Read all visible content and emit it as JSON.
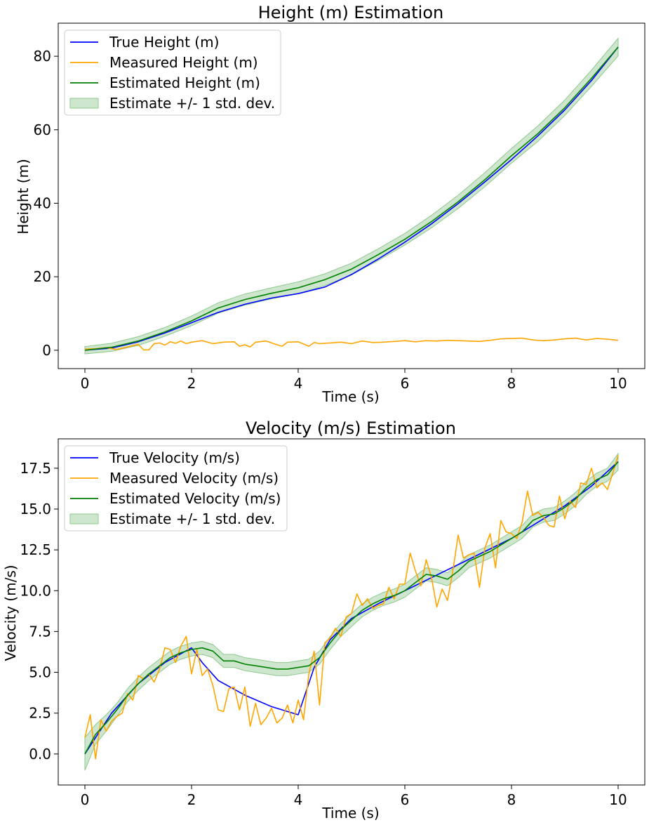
{
  "chart_data": [
    {
      "type": "line",
      "title": "Height (m) Estimation",
      "xlabel": "Time (s)",
      "ylabel": "Height (m)",
      "xlim": [
        -0.5,
        10.5
      ],
      "ylim": [
        -5,
        89
      ],
      "xticks": [
        0,
        2,
        4,
        6,
        8,
        10
      ],
      "xtick_labels": [
        "0",
        "2",
        "4",
        "6",
        "8",
        "10"
      ],
      "yticks": [
        0,
        20,
        40,
        60,
        80
      ],
      "ytick_labels": [
        "0",
        "20",
        "40",
        "60",
        "80"
      ],
      "grid": false,
      "legend_position": "top-left",
      "colors": {
        "true": "#0000ff",
        "measured": "#ffa500",
        "estimated": "#008000",
        "band": "#90c890"
      },
      "legend": [
        "True Height (m)",
        "Measured Height (m)",
        "Estimated Height (m)",
        "Estimate +/- 1 std. dev."
      ],
      "series": [
        {
          "name": "True Height (m)",
          "key": "true",
          "x": [
            0,
            0.5,
            1,
            1.5,
            2,
            2.5,
            3,
            3.5,
            4,
            4.5,
            5,
            5.5,
            6,
            6.5,
            7,
            7.5,
            8,
            8.5,
            9,
            9.5,
            10
          ],
          "y": [
            0,
            0.6,
            2.3,
            4.7,
            7.5,
            10.3,
            12.5,
            14.2,
            15.4,
            17.2,
            20.6,
            24.8,
            29.4,
            34.4,
            39.9,
            45.8,
            51.9,
            58.4,
            65.4,
            73.4,
            82.5
          ]
        },
        {
          "name": "Measured Height (m)",
          "key": "measured",
          "x": [
            0,
            0.2,
            0.4,
            0.6,
            0.8,
            1,
            1.1,
            1.2,
            1.3,
            1.4,
            1.5,
            1.6,
            1.7,
            1.8,
            1.9,
            2,
            2.2,
            2.4,
            2.6,
            2.8,
            2.9,
            3,
            3.1,
            3.2,
            3.4,
            3.6,
            3.7,
            3.8,
            4,
            4.2,
            4.3,
            4.4,
            4.6,
            4.8,
            5,
            5.2,
            5.4,
            5.6,
            5.8,
            6,
            6.2,
            6.4,
            6.6,
            6.8,
            7,
            7.2,
            7.4,
            7.6,
            7.8,
            8,
            8.2,
            8.4,
            8.6,
            8.8,
            9,
            9.2,
            9.4,
            9.6,
            9.8,
            10
          ],
          "y": [
            0.3,
            0.4,
            0.7,
            0.2,
            0.9,
            1.6,
            0.1,
            0.1,
            1.8,
            2,
            1.4,
            2.3,
            1.9,
            2.5,
            1.8,
            2.2,
            2.6,
            1.8,
            2.2,
            2.3,
            1.1,
            1.5,
            0.9,
            2.2,
            2.5,
            1.5,
            1.1,
            2.2,
            2.3,
            1.1,
            2.1,
            1.8,
            2,
            2.2,
            1.8,
            2.5,
            2.1,
            2.2,
            2.4,
            2.6,
            2.3,
            2.6,
            2.5,
            2.7,
            2.6,
            2.5,
            2.4,
            2.7,
            3.1,
            3.2,
            3.3,
            2.8,
            2.6,
            2.8,
            3.1,
            3.3,
            2.8,
            3.2,
            3,
            2.7
          ]
        },
        {
          "name": "Estimated Height (m)",
          "key": "estimated",
          "x": [
            0,
            0.5,
            1,
            1.5,
            2,
            2.5,
            3,
            3.5,
            4,
            4.5,
            5,
            5.5,
            6,
            6.5,
            7,
            7.5,
            8,
            8.5,
            9,
            9.5,
            10
          ],
          "y": [
            0,
            0.8,
            2.5,
            5,
            8,
            11.5,
            13.8,
            15.5,
            17,
            19.2,
            22.1,
            26,
            30.2,
            35,
            40.4,
            46.4,
            52.9,
            59,
            66,
            74,
            82.5
          ]
        },
        {
          "name": "Estimate +/- 1 std. dev.",
          "key": "band",
          "x": [
            0,
            0.5,
            1,
            1.5,
            2,
            2.5,
            3,
            3.5,
            4,
            4.5,
            5,
            5.5,
            6,
            6.5,
            7,
            7.5,
            8,
            8.5,
            9,
            9.5,
            10
          ],
          "y_lower": [
            -1,
            -0.3,
            1.3,
            3.8,
            6.7,
            10.1,
            12.3,
            14,
            15.4,
            17.6,
            20.5,
            24.4,
            28.6,
            33.3,
            38.6,
            44.5,
            50.9,
            56.9,
            63.9,
            71.8,
            80.1
          ],
          "y_upper": [
            1,
            1.9,
            3.7,
            6.2,
            9.3,
            12.9,
            15.3,
            17,
            18.6,
            20.8,
            23.7,
            27.6,
            31.8,
            36.7,
            42.2,
            48.3,
            54.9,
            61.1,
            68.1,
            76.2,
            84.9
          ]
        }
      ]
    },
    {
      "type": "line",
      "title": "Velocity (m/s) Estimation",
      "xlabel": "Time (s)",
      "ylabel": "Velocity (m/s)",
      "xlim": [
        -0.5,
        10.5
      ],
      "ylim": [
        -1.9,
        19.3
      ],
      "xticks": [
        0,
        2,
        4,
        6,
        8,
        10
      ],
      "xtick_labels": [
        "0",
        "2",
        "4",
        "6",
        "8",
        "10"
      ],
      "yticks": [
        0,
        2.5,
        5,
        7.5,
        10,
        12.5,
        15,
        17.5
      ],
      "ytick_labels": [
        "0.0",
        "2.5",
        "5.0",
        "7.5",
        "10.0",
        "12.5",
        "15.0",
        "17.5"
      ],
      "grid": false,
      "legend_position": "top-left",
      "colors": {
        "true": "#0000ff",
        "measured": "#ffa500",
        "estimated": "#008000",
        "band": "#90c890"
      },
      "legend": [
        "True Velocity (m/s)",
        "Measured Velocity (m/s)",
        "Estimated Velocity (m/s)",
        "Estimate +/- 1 std. dev."
      ],
      "series": [
        {
          "name": "True Velocity (m/s)",
          "key": "true",
          "x": [
            0,
            0.5,
            1,
            1.5,
            2,
            2.2,
            2.5,
            3,
            3.5,
            4,
            4.3,
            4.6,
            5,
            5.5,
            6,
            6.5,
            7,
            7.5,
            8,
            8.5,
            9,
            9.5,
            10
          ],
          "y": [
            0,
            2.5,
            4.3,
            5.6,
            6.5,
            5.6,
            4.5,
            3.6,
            2.9,
            2.4,
            5.3,
            7,
            8.3,
            9.2,
            10,
            10.8,
            11.6,
            12.4,
            13.2,
            14.2,
            15.2,
            16.4,
            17.9
          ]
        },
        {
          "name": "Measured Velocity (m/s)",
          "key": "measured",
          "x": [
            0,
            0.1,
            0.2,
            0.3,
            0.4,
            0.5,
            0.6,
            0.7,
            0.8,
            0.9,
            1,
            1.1,
            1.2,
            1.3,
            1.4,
            1.5,
            1.6,
            1.7,
            1.8,
            1.9,
            2,
            2.1,
            2.2,
            2.3,
            2.4,
            2.5,
            2.6,
            2.7,
            2.8,
            2.9,
            3,
            3.1,
            3.2,
            3.3,
            3.4,
            3.5,
            3.6,
            3.7,
            3.8,
            3.9,
            4,
            4.1,
            4.2,
            4.3,
            4.4,
            4.5,
            4.6,
            4.7,
            4.8,
            4.9,
            5,
            5.1,
            5.2,
            5.3,
            5.4,
            5.5,
            5.6,
            5.7,
            5.8,
            5.9,
            6,
            6.1,
            6.2,
            6.3,
            6.4,
            6.5,
            6.6,
            6.7,
            6.8,
            6.9,
            7,
            7.1,
            7.2,
            7.3,
            7.4,
            7.5,
            7.6,
            7.7,
            7.8,
            7.9,
            8,
            8.1,
            8.2,
            8.3,
            8.4,
            8.5,
            8.6,
            8.7,
            8.8,
            8.9,
            9,
            9.1,
            9.2,
            9.3,
            9.4,
            9.5,
            9.6,
            9.7,
            9.8,
            9.9,
            10
          ],
          "y": [
            1,
            2.4,
            -0.3,
            2.1,
            1.4,
            2,
            2.3,
            2.5,
            3.7,
            3.3,
            4.8,
            4.6,
            4.9,
            4.4,
            5.2,
            6.5,
            6.4,
            5.6,
            6.6,
            7.2,
            4.9,
            6.4,
            4.8,
            5.2,
            4.2,
            2.7,
            2.6,
            4,
            4.1,
            2.7,
            4.1,
            1.7,
            3.1,
            1.8,
            2.2,
            2.8,
            1.9,
            2.2,
            3,
            1.9,
            3.3,
            2.1,
            4.9,
            6.3,
            3,
            6.8,
            7.1,
            7.7,
            7.2,
            8.4,
            8.6,
            9.8,
            9.1,
            9.5,
            8.9,
            9.1,
            9.2,
            10.2,
            9.5,
            10.4,
            10.4,
            12.3,
            11.2,
            10.3,
            11.9,
            10.8,
            9,
            10.1,
            9.4,
            11.2,
            13.4,
            12,
            12.2,
            12.3,
            10.2,
            12.6,
            13.5,
            11.4,
            14.3,
            13.6,
            13.5,
            13.2,
            14.2,
            16.1,
            14.6,
            14.8,
            14.5,
            14,
            13.9,
            15.8,
            14.4,
            15.5,
            15.1,
            16.6,
            16.5,
            17.5,
            16.3,
            16.6,
            16.2,
            17.2,
            18.3
          ]
        },
        {
          "name": "Estimated Velocity (m/s)",
          "key": "estimated",
          "x": [
            0,
            0.2,
            0.4,
            0.6,
            0.8,
            1,
            1.2,
            1.4,
            1.6,
            1.8,
            2,
            2.2,
            2.4,
            2.6,
            2.8,
            3,
            3.2,
            3.4,
            3.6,
            3.8,
            4,
            4.2,
            4.4,
            4.6,
            4.8,
            5,
            5.2,
            5.4,
            5.6,
            5.8,
            6,
            6.2,
            6.4,
            6.6,
            6.8,
            7,
            7.2,
            7.4,
            7.6,
            7.8,
            8,
            8.2,
            8.4,
            8.6,
            8.8,
            9,
            9.2,
            9.4,
            9.6,
            9.8,
            10
          ],
          "y": [
            0,
            1.2,
            1.9,
            2.7,
            3.6,
            4.3,
            4.9,
            5.4,
            5.9,
            6.2,
            6.4,
            6.5,
            6.3,
            5.7,
            5.7,
            5.5,
            5.4,
            5.3,
            5.2,
            5.2,
            5.3,
            5.4,
            5.9,
            6.8,
            7.6,
            8.2,
            8.8,
            9.2,
            9.5,
            9.7,
            10,
            10.5,
            11,
            10.9,
            10.7,
            11.2,
            11.8,
            12.1,
            12.4,
            12.8,
            13.2,
            13.6,
            14.3,
            14.6,
            14.7,
            15.1,
            15.6,
            16.3,
            16.8,
            17.1,
            17.9
          ]
        },
        {
          "name": "Estimate +/- 1 std. dev.",
          "key": "band",
          "x": [
            0,
            0.2,
            0.4,
            0.6,
            0.8,
            1,
            1.2,
            1.4,
            1.6,
            1.8,
            2,
            2.2,
            2.4,
            2.6,
            2.8,
            3,
            3.2,
            3.4,
            3.6,
            3.8,
            4,
            4.2,
            4.4,
            4.6,
            4.8,
            5,
            5.2,
            5.4,
            5.6,
            5.8,
            6,
            6.2,
            6.4,
            6.6,
            6.8,
            7,
            7.2,
            7.4,
            7.6,
            7.8,
            8,
            8.2,
            8.4,
            8.6,
            8.8,
            9,
            9.2,
            9.4,
            9.6,
            9.8,
            10
          ],
          "y_lower": [
            -1,
            0.6,
            1.4,
            2.3,
            3.2,
            3.9,
            4.5,
            5,
            5.5,
            5.8,
            6,
            6.1,
            5.9,
            5.3,
            5.3,
            5.1,
            5,
            4.9,
            4.8,
            4.8,
            4.9,
            5,
            5.5,
            6.4,
            7.2,
            7.8,
            8.4,
            8.8,
            9.1,
            9.3,
            9.6,
            10.1,
            10.6,
            10.5,
            10.3,
            10.8,
            11.4,
            11.7,
            12,
            12.4,
            12.8,
            13.2,
            13.9,
            14.2,
            14.3,
            14.7,
            15.2,
            15.9,
            16.4,
            16.7,
            17.4
          ]
        },
        {
          "name": "",
          "key": "band_upper_ref",
          "x": [
            0,
            0.2,
            0.4,
            0.6,
            0.8,
            1,
            1.2,
            1.4,
            1.6,
            1.8,
            2,
            2.2,
            2.4,
            2.6,
            2.8,
            3,
            3.2,
            3.4,
            3.6,
            3.8,
            4,
            4.2,
            4.4,
            4.6,
            4.8,
            5,
            5.2,
            5.4,
            5.6,
            5.8,
            6,
            6.2,
            6.4,
            6.6,
            6.8,
            7,
            7.2,
            7.4,
            7.6,
            7.8,
            8,
            8.2,
            8.4,
            8.6,
            8.8,
            9,
            9.2,
            9.4,
            9.6,
            9.8,
            10
          ],
          "y_upper": [
            1,
            1.8,
            2.4,
            3.1,
            4,
            4.7,
            5.3,
            5.8,
            6.3,
            6.6,
            6.8,
            6.9,
            6.7,
            6.1,
            6.1,
            5.9,
            5.8,
            5.7,
            5.6,
            5.6,
            5.7,
            5.8,
            6.3,
            7.2,
            8,
            8.6,
            9.2,
            9.6,
            9.9,
            10.1,
            10.4,
            10.9,
            11.4,
            11.3,
            11.1,
            11.6,
            12.2,
            12.5,
            12.8,
            13.2,
            13.6,
            14,
            14.7,
            15,
            15.1,
            15.5,
            16,
            16.7,
            17.2,
            17.5,
            18.4
          ]
        }
      ]
    }
  ]
}
